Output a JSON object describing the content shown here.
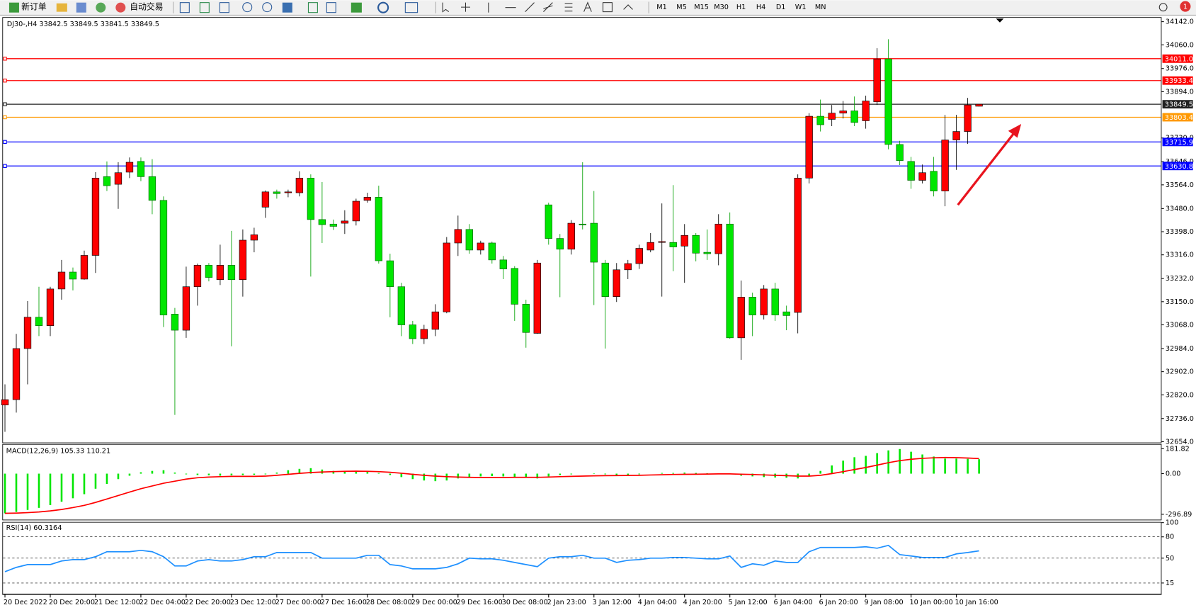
{
  "toolbar": {
    "new_order": "新订单",
    "auto_trading": "自动交易",
    "timeframes": [
      "M1",
      "M5",
      "M15",
      "M30",
      "H1",
      "H4",
      "D1",
      "W1",
      "MN"
    ],
    "notifications": "1"
  },
  "chart_data": [
    {
      "type": "candlestick",
      "title": "DJ30-,H4  33842.5 33849.5 33841.5 33849.5",
      "up_color": "#ff0000",
      "down_color": "#00e600",
      "categories": [
        "20 Dec 2022",
        null,
        null,
        null,
        "20 Dec 20:00",
        null,
        null,
        null,
        "21 Dec 12:00",
        null,
        null,
        null,
        "22 Dec 04:00",
        null,
        null,
        null,
        "22 Dec 20:00",
        null,
        null,
        null,
        "23 Dec 12:00",
        null,
        null,
        null,
        "27 Dec 00:00",
        null,
        null,
        null,
        "27 Dec 16:00",
        null,
        null,
        null,
        "28 Dec 08:00",
        null,
        null,
        null,
        "29 Dec 00:00",
        null,
        null,
        null,
        "29 Dec 16:00",
        null,
        null,
        null,
        "30 Dec 08:00",
        null,
        null,
        null,
        "2 Jan 23:00",
        null,
        null,
        null,
        "3 Jan 12:00",
        null,
        null,
        null,
        "4 Jan 04:00",
        null,
        null,
        null,
        "4 Jan 20:00",
        null,
        null,
        null,
        "5 Jan 12:00",
        null,
        null,
        null,
        "6 Jan 04:00",
        null,
        null,
        null,
        "6 Jan 20:00",
        null,
        null,
        null,
        "9 Jan 08:00",
        null,
        null,
        null,
        "10 Jan 00:00",
        null,
        null,
        null,
        "10 Jan 16:00",
        null,
        null
      ],
      "open": [
        32784,
        32803,
        32984,
        33095,
        33065,
        33195,
        33255,
        33230,
        33314,
        33593,
        33566,
        33609,
        33647,
        33593,
        33509,
        33106,
        33049,
        33203,
        33279,
        33228,
        33279,
        33228,
        33368,
        33485,
        33539,
        33536,
        33536,
        33588,
        33441,
        33425,
        33428,
        33436,
        33509,
        33520,
        33295,
        33203,
        33068,
        33019,
        33052,
        33114,
        33358,
        33406,
        33333,
        33358,
        33298,
        33268,
        33141,
        33038,
        33493,
        33374,
        33336,
        33425,
        33428,
        33287,
        33168,
        33263,
        33285,
        33333,
        33360,
        33360,
        33347,
        33385,
        33325,
        33320,
        33425,
        33022,
        33166,
        33103,
        33195,
        33114,
        33112,
        33588,
        33807,
        33796,
        33818,
        33826,
        33791,
        33858,
        34010,
        33707,
        33647,
        33580,
        33612,
        33542,
        33723,
        33753,
        33842.5
      ],
      "high": [
        32857,
        33036,
        33152,
        33203,
        33203,
        33298,
        33271,
        33331,
        33609,
        33647,
        33644,
        33661,
        33661,
        33655,
        33523,
        33128,
        33274,
        33285,
        33287,
        33352,
        33401,
        33406,
        33412,
        33544,
        33547,
        33547,
        33612,
        33601,
        33574,
        33441,
        33474,
        33515,
        33536,
        33561,
        33320,
        33217,
        33082,
        33068,
        33141,
        33379,
        33455,
        33425,
        33366,
        33363,
        33312,
        33276,
        33157,
        33298,
        33501,
        33390,
        33439,
        33644,
        33542,
        33298,
        33287,
        33298,
        33352,
        33393,
        33498,
        33563,
        33425,
        33393,
        33406,
        33460,
        33466,
        33225,
        33182,
        33209,
        33217,
        33136,
        33601,
        33818,
        33866,
        33847,
        33861,
        33877,
        33880,
        34048,
        34080,
        33720,
        33663,
        33636,
        33663,
        33812,
        33812,
        33872,
        33849.5
      ],
      "low": [
        32689,
        32757,
        32857,
        33028,
        33028,
        33157,
        33190,
        33228,
        33252,
        33542,
        33479,
        33588,
        33577,
        33460,
        33060,
        32749,
        33022,
        33136,
        33222,
        33209,
        32992,
        33168,
        33325,
        33447,
        33515,
        33520,
        33523,
        33239,
        33358,
        33404,
        33390,
        33420,
        33501,
        33285,
        33095,
        33028,
        33000,
        33000,
        33028,
        33109,
        33312,
        33320,
        33317,
        33285,
        33230,
        33082,
        32987,
        33036,
        33352,
        33166,
        33317,
        33406,
        33138,
        32984,
        33149,
        33230,
        33266,
        33325,
        33168,
        33258,
        33217,
        33293,
        33298,
        33279,
        33019,
        32944,
        33028,
        33087,
        33082,
        33049,
        33038,
        33569,
        33753,
        33772,
        33799,
        33772,
        33763,
        33847,
        33690,
        33634,
        33550,
        33569,
        33523,
        33488,
        33617,
        33709,
        33841.5
      ],
      "close": [
        32803,
        32984,
        33095,
        33065,
        33195,
        33255,
        33230,
        33314,
        33588,
        33561,
        33607,
        33644,
        33593,
        33509,
        33103,
        33049,
        33203,
        33279,
        33236,
        33279,
        33228,
        33368,
        33387,
        33539,
        33533,
        33539,
        33588,
        33441,
        33423,
        33417,
        33436,
        33506,
        33520,
        33295,
        33203,
        33068,
        33019,
        33052,
        33114,
        33358,
        33406,
        33333,
        33358,
        33298,
        33266,
        33141,
        33041,
        33287,
        33374,
        33336,
        33428,
        33423,
        33290,
        33168,
        33263,
        33285,
        33339,
        33360,
        33363,
        33344,
        33385,
        33322,
        33320,
        33425,
        33022,
        33166,
        33103,
        33195,
        33103,
        33101,
        33588,
        33807,
        33777,
        33818,
        33826,
        33785,
        33861,
        34010,
        33707,
        33650,
        33580,
        33607,
        33542,
        33723,
        33753,
        33847,
        33849.5
      ],
      "ylim": [
        32654,
        34142
      ],
      "yticks": [
        {
          "value": 34142,
          "label": "34142.0"
        },
        {
          "value": 34060,
          "label": "34060.0"
        },
        {
          "value": 33976,
          "label": "33976.0"
        },
        {
          "value": 33894,
          "label": "33894.0"
        },
        {
          "value": 33730,
          "label": "33730.0"
        },
        {
          "value": 33646,
          "label": "33646.0"
        },
        {
          "value": 33564,
          "label": "33564.0"
        },
        {
          "value": 33480,
          "label": "33480.0"
        },
        {
          "value": 33398,
          "label": "33398.0"
        },
        {
          "value": 33316,
          "label": "33316.0"
        },
        {
          "value": 33232,
          "label": "33232.0"
        },
        {
          "value": 33150,
          "label": "33150.0"
        },
        {
          "value": 33068,
          "label": "33068.0"
        },
        {
          "value": 32984,
          "label": "32984.0"
        },
        {
          "value": 32902,
          "label": "32902.0"
        },
        {
          "value": 32820,
          "label": "32820.0"
        },
        {
          "value": 32736,
          "label": "32736.0"
        },
        {
          "value": 32654,
          "label": "32654.0"
        }
      ],
      "levels": [
        {
          "value": 34011,
          "label": "34011.0",
          "color": "#ff0000"
        },
        {
          "value": 33933.4,
          "label": "33933.4",
          "color": "#ff0000"
        },
        {
          "value": 33849.5,
          "label": "33849.5",
          "color": "#202020"
        },
        {
          "value": 33803.4,
          "label": "33803.4",
          "color": "#ff9900"
        },
        {
          "value": 33715.9,
          "label": "33715.9",
          "color": "#0000ff"
        },
        {
          "value": 33630.8,
          "label": "33630.8",
          "color": "#0000ff"
        }
      ]
    },
    {
      "type": "macd",
      "title": "MACD(12,26,9) 105.33 110.21",
      "series": [
        {
          "style": "bar",
          "color": "#00e600",
          "values": [
            -290,
            -280,
            -265,
            -250,
            -230,
            -205,
            -180,
            -150,
            -110,
            -75,
            -40,
            -15,
            10,
            20,
            25,
            8,
            -5,
            -10,
            -12,
            -15,
            -12,
            -10,
            -8,
            -5,
            8,
            25,
            35,
            40,
            30,
            20,
            18,
            15,
            12,
            5,
            -10,
            -25,
            -40,
            -50,
            -55,
            -50,
            -35,
            -25,
            -20,
            -18,
            -20,
            -25,
            -30,
            -35,
            -20,
            -10,
            -5,
            0,
            3,
            -5,
            -10,
            -8,
            -5,
            0,
            5,
            5,
            8,
            5,
            3,
            0,
            2,
            -15,
            -20,
            -25,
            -28,
            -30,
            -35,
            -20,
            20,
            60,
            95,
            120,
            130,
            150,
            170,
            180,
            160,
            140,
            125,
            110,
            110,
            108,
            105.33
          ]
        },
        {
          "style": "line",
          "color": "#ff0000",
          "values": [
            -290,
            -288,
            -285,
            -280,
            -272,
            -262,
            -248,
            -232,
            -210,
            -185,
            -160,
            -135,
            -110,
            -90,
            -70,
            -55,
            -40,
            -30,
            -25,
            -22,
            -20,
            -20,
            -20,
            -18,
            -12,
            -5,
            2,
            8,
            12,
            15,
            17,
            18,
            17,
            15,
            10,
            3,
            -5,
            -12,
            -18,
            -22,
            -25,
            -27,
            -28,
            -28,
            -28,
            -27,
            -27,
            -27,
            -25,
            -22,
            -20,
            -18,
            -16,
            -15,
            -14,
            -13,
            -12,
            -10,
            -8,
            -6,
            -5,
            -4,
            -3,
            -2,
            -2,
            -4,
            -6,
            -9,
            -12,
            -15,
            -18,
            -18,
            -12,
            0,
            15,
            30,
            45,
            62,
            80,
            95,
            105,
            112,
            116,
            118,
            117,
            114,
            110.21
          ]
        }
      ],
      "ylim": [
        -330,
        200
      ],
      "yticks": [
        {
          "value": 181.82,
          "label": "181.82"
        },
        {
          "value": 0,
          "label": "0.00"
        },
        {
          "value": -296.89,
          "label": "-296.89"
        }
      ]
    },
    {
      "type": "rsi",
      "title": "RSI(14) 60.3164",
      "series": [
        {
          "style": "line",
          "color": "#1e90ff",
          "values": [
            31,
            37,
            41,
            41,
            41,
            46,
            48,
            48,
            52,
            59,
            59,
            59,
            61,
            59,
            52,
            39,
            39,
            46,
            48,
            46,
            46,
            48,
            52,
            52,
            58,
            58,
            58,
            58,
            50,
            50,
            50,
            50,
            54,
            54,
            41,
            39,
            35,
            35,
            35,
            37,
            42,
            50,
            49,
            49,
            47,
            44,
            41,
            38,
            50,
            52,
            52,
            54,
            50,
            50,
            44,
            47,
            48,
            50,
            50,
            51,
            51,
            50,
            49,
            49,
            53,
            37,
            42,
            40,
            46,
            44,
            44,
            59,
            65,
            65,
            65,
            65,
            66,
            64,
            68,
            55,
            53,
            51,
            51,
            51,
            56,
            58,
            60.3164
          ]
        }
      ],
      "ylim": [
        0,
        100
      ],
      "yticks": [
        100,
        80,
        50,
        15
      ]
    }
  ]
}
